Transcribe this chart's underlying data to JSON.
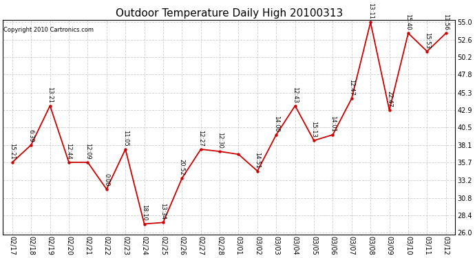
{
  "title": "Outdoor Temperature Daily High 20100313",
  "copyright": "Copyright 2010 Cartronics.com",
  "dates": [
    "02/17",
    "02/18",
    "02/19",
    "02/20",
    "02/21",
    "02/22",
    "02/23",
    "02/24",
    "02/25",
    "02/26",
    "02/27",
    "02/28",
    "03/01",
    "03/02",
    "03/03",
    "03/04",
    "03/05",
    "03/06",
    "03/07",
    "03/08",
    "03/09",
    "03/10",
    "03/11",
    "03/12"
  ],
  "values": [
    35.7,
    38.1,
    43.5,
    35.7,
    35.7,
    32.0,
    37.5,
    27.2,
    27.4,
    33.5,
    37.5,
    37.2,
    36.8,
    34.5,
    39.5,
    43.5,
    38.7,
    39.5,
    44.5,
    55.0,
    42.9,
    53.5,
    51.0,
    53.5
  ],
  "time_labels": [
    "15:21",
    "6:39",
    "13:21",
    "12:44",
    "12:09",
    "0:00",
    "11:05",
    "18:10",
    "13:34",
    "20:52",
    "12:27",
    "12:30",
    "",
    "14:51",
    "14:00",
    "12:43",
    "15:13",
    "14:01",
    "12:47",
    "13:11",
    "22:47",
    "15:40",
    "15:53",
    "11:56"
  ],
  "ylim": [
    26.0,
    55.0
  ],
  "yticks": [
    26.0,
    28.4,
    30.8,
    33.2,
    35.7,
    38.1,
    40.5,
    42.9,
    45.3,
    47.8,
    50.2,
    52.6,
    55.0
  ],
  "line_color": "#cc0000",
  "marker_color": "#cc0000",
  "bg_color": "#ffffff",
  "grid_color": "#cccccc",
  "title_fontsize": 11,
  "label_fontsize": 6.0,
  "tick_fontsize": 7.0,
  "copyright_fontsize": 6.0
}
